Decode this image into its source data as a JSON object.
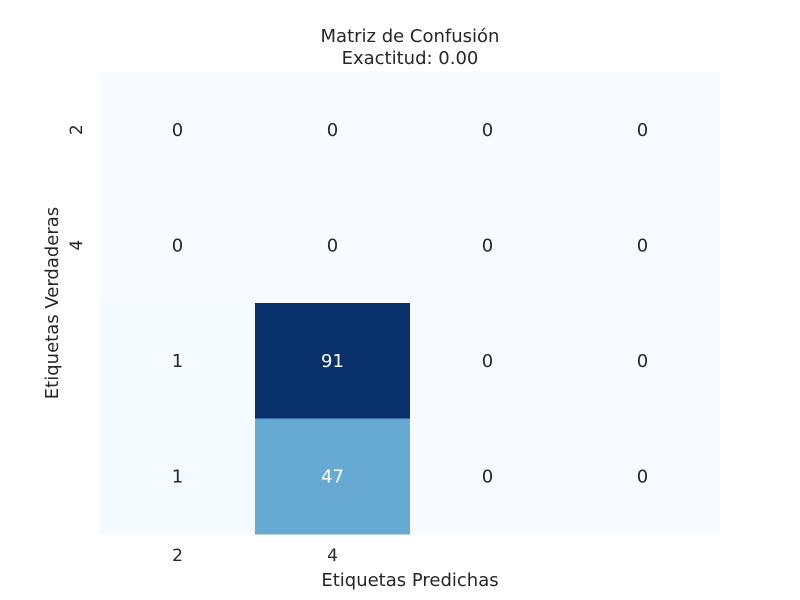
{
  "chart_data": {
    "type": "heatmap",
    "title_lines": [
      "Matriz de Confusión",
      "Exactitud: 0.00"
    ],
    "xlabel": "Etiquetas Predichas",
    "ylabel": "Etiquetas Verdaderas",
    "x_ticks": [
      "2",
      "4",
      "",
      ""
    ],
    "y_ticks": [
      "2",
      "4",
      "",
      ""
    ],
    "matrix": [
      [
        0,
        0,
        0,
        0
      ],
      [
        0,
        0,
        0,
        0
      ],
      [
        1,
        91,
        0,
        0
      ],
      [
        1,
        47,
        0,
        0
      ]
    ],
    "value_range": [
      0,
      91
    ],
    "colormap": "Blues",
    "color_low": "#f7fbff",
    "color_high": "#08306b",
    "colorbar": false,
    "grid": false
  }
}
